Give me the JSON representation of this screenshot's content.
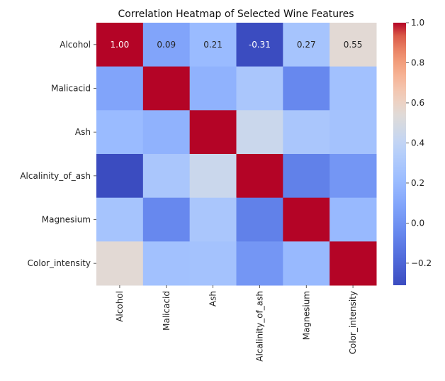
{
  "chart_data": {
    "type": "heatmap",
    "title": "Correlation Heatmap of Selected Wine Features",
    "xlabel": "",
    "ylabel": "",
    "x_categories": [
      "Alcohol",
      "Malicacid",
      "Ash",
      "Alcalinity_of_ash",
      "Magnesium",
      "Color_intensity"
    ],
    "y_categories": [
      "Alcohol",
      "Malicacid",
      "Ash",
      "Alcalinity_of_ash",
      "Magnesium",
      "Color_intensity"
    ],
    "values": [
      [
        1.0,
        0.09,
        0.21,
        -0.31,
        0.27,
        0.55
      ],
      [
        0.09,
        1.0,
        0.16,
        0.29,
        -0.05,
        0.25
      ],
      [
        0.21,
        0.16,
        1.0,
        0.44,
        0.29,
        0.26
      ],
      [
        -0.31,
        0.29,
        0.44,
        1.0,
        -0.08,
        0.02
      ],
      [
        0.27,
        -0.05,
        0.29,
        -0.08,
        1.0,
        0.2
      ],
      [
        0.55,
        0.25,
        0.26,
        0.02,
        0.2,
        1.0
      ]
    ],
    "annotated_cells": [
      {
        "row": 0,
        "col": 0,
        "text": "1.00"
      },
      {
        "row": 0,
        "col": 1,
        "text": "0.09"
      },
      {
        "row": 0,
        "col": 2,
        "text": "0.21"
      },
      {
        "row": 0,
        "col": 3,
        "text": "-0.31"
      },
      {
        "row": 0,
        "col": 4,
        "text": "0.27"
      },
      {
        "row": 0,
        "col": 5,
        "text": "0.55"
      }
    ],
    "colormap": "coolwarm",
    "colorbar": {
      "min": -0.31,
      "max": 1.0,
      "ticks": [
        1.0,
        0.8,
        0.6,
        0.4,
        0.2,
        0.0,
        -0.2
      ],
      "tick_labels": [
        "1.0",
        "0.8",
        "0.6",
        "0.4",
        "0.2",
        "0.0",
        "−0.2"
      ]
    },
    "grid": false,
    "legend": "colorbar-right"
  }
}
